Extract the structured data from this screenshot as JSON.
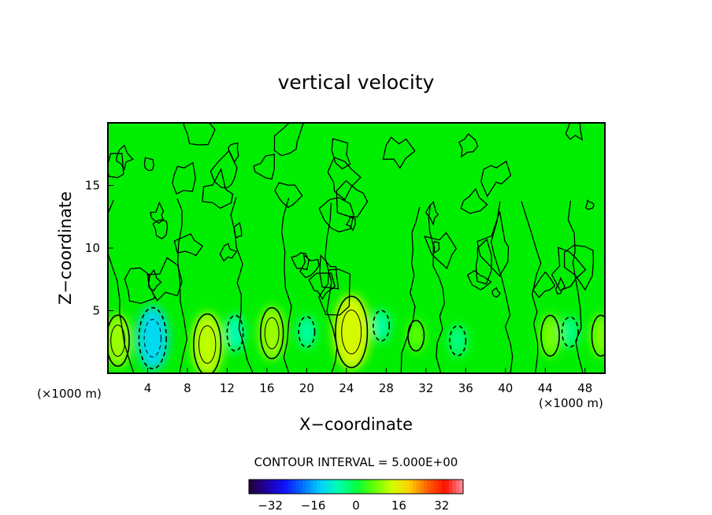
{
  "chart_data": {
    "type": "heatmap",
    "title": "vertical velocity",
    "xlabel": "X−coordinate",
    "ylabel": "Z−coordinate",
    "x_unit": "(×1000 m)",
    "x_unit_right": "(×1000 m)",
    "xlim": [
      0,
      50
    ],
    "ylim": [
      0,
      20
    ],
    "x_ticks": [
      4,
      8,
      12,
      16,
      20,
      24,
      28,
      32,
      36,
      40,
      44,
      48
    ],
    "y_ticks": [
      5,
      10,
      15
    ],
    "contour_interval_text": "CONTOUR INTERVAL = 5.000E+00",
    "contour_interval": 5,
    "colorbar": {
      "range": [
        -40,
        40
      ],
      "ticks": [
        -32,
        -16,
        0,
        16,
        32
      ],
      "tick_labels": [
        "−32",
        "−16",
        "0",
        "16",
        "32"
      ],
      "colormap": [
        "#200030",
        "#2000a0",
        "#1010ff",
        "#0070ff",
        "#00d0ff",
        "#00ffb0",
        "#00ff40",
        "#60ff00",
        "#d0ff00",
        "#ffd000",
        "#ff6000",
        "#ff1000",
        "#ff90a0"
      ]
    },
    "field": {
      "background_value": 0,
      "updraft_cores": [
        {
          "x": 1.0,
          "z": 2.6,
          "value": 10
        },
        {
          "x": 10.0,
          "z": 2.3,
          "value": 12
        },
        {
          "x": 16.5,
          "z": 3.2,
          "value": 10
        },
        {
          "x": 24.5,
          "z": 3.3,
          "value": 14
        },
        {
          "x": 31.0,
          "z": 3.0,
          "value": 6
        },
        {
          "x": 44.5,
          "z": 3.0,
          "value": 8
        },
        {
          "x": 49.6,
          "z": 3.0,
          "value": 8
        }
      ],
      "downdraft_cores": [
        {
          "x": 4.5,
          "z": 2.8,
          "value": -12
        },
        {
          "x": 12.8,
          "z": 3.2,
          "value": -7
        },
        {
          "x": 20.0,
          "z": 3.3,
          "value": -6
        },
        {
          "x": 27.5,
          "z": 3.8,
          "value": -6
        },
        {
          "x": 35.2,
          "z": 2.6,
          "value": -4
        },
        {
          "x": 46.5,
          "z": 3.3,
          "value": -4
        }
      ]
    },
    "grid": false,
    "legend": "none"
  }
}
